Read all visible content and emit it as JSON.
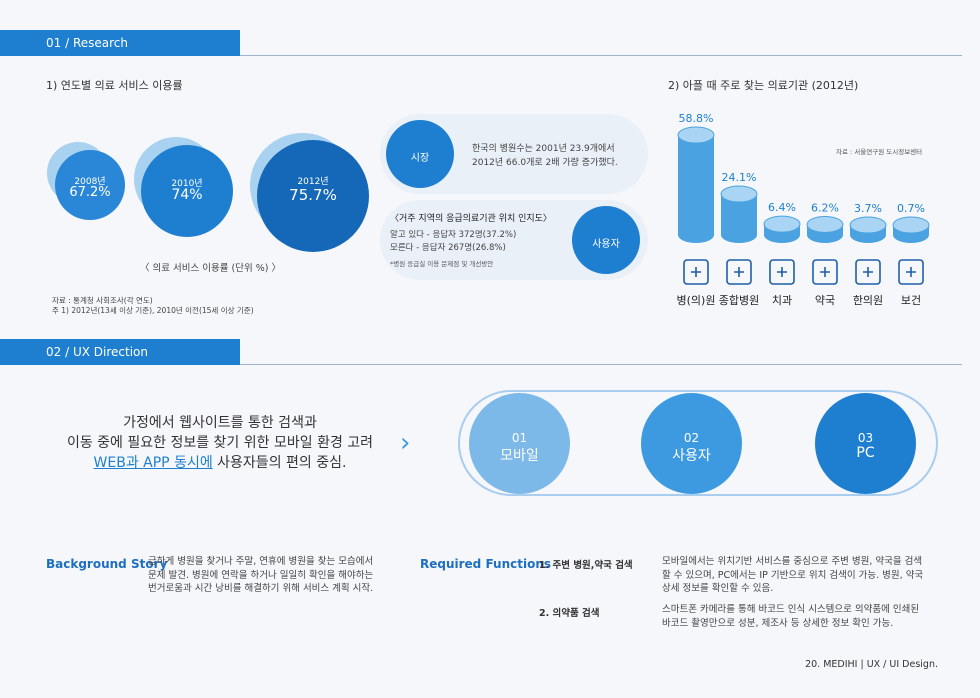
{
  "sections": {
    "research": "01 / Research",
    "ux": "02 / UX Direction"
  },
  "research": {
    "left_title": "1) 연도별 의료 서비스 이용률",
    "right_title": "2) 아플 때 주로 찾는 의료기관 (2012년)",
    "circles": [
      {
        "year": "2008년",
        "value": "67.2%"
      },
      {
        "year": "2010년",
        "value": "74%"
      },
      {
        "year": "2012년",
        "value": "75.7%"
      }
    ],
    "circles_caption": "〈 의료 서비스 이용률 (단위 %) 〉",
    "source_left": "자료 : 통계청 사회조사(각 연도)",
    "note_left": "주 1) 2012년(13세 이상 기준), 2010년 이전(15세 이상 기준)",
    "market": {
      "badge": "시장",
      "text1": "한국의 병원수는 2001년 23.9개에서",
      "text2": "2012년 66.0개로 2배 가량 증가했다."
    },
    "user": {
      "badge": "사용자",
      "title": "〈거주 지역의 응급의료기관 위치 인지도〉",
      "line1": "알고 있다 - 응답자 372명(37.2%)",
      "line2": "모른다 - 응답자 267명(26.8%)",
      "note": "*병원 응급실 이용 문제점 및 개선방안"
    },
    "source_right": "자료 : 서울연구원 도시정보센터"
  },
  "chart_data": {
    "type": "bar",
    "title": "2) 아플 때 주로 찾는 의료기관 (2012년)",
    "categories": [
      "병(의)원",
      "종합병원",
      "치과",
      "약국",
      "한의원",
      "보건"
    ],
    "values": [
      58.8,
      24.1,
      6.4,
      6.2,
      3.7,
      0.7
    ],
    "value_labels": [
      "58.8%",
      "24.1%",
      "6.4%",
      "6.2%",
      "3.7%",
      "0.7%"
    ],
    "icons": [
      "clinic-icon",
      "hospital-icon",
      "tooth-icon",
      "pill-icon",
      "herb-bowl-icon",
      "health-center-icon"
    ],
    "color": "#4aa3e0"
  },
  "ux": {
    "line1": "가정에서 웹사이트를 통한 검색과",
    "line2": "이동 중에 필요한 정보를 찾기 위한 모바일 환경 고려",
    "line3_highlight": "WEB과 APP 동시에",
    "line3_rest": " 사용자들의 편의 중심.",
    "arrow": "›",
    "items": [
      {
        "num": "01",
        "label": "모바일",
        "color": "#7cb8e8"
      },
      {
        "num": "02",
        "label": "사용자",
        "color": "#3d9ae0"
      },
      {
        "num": "03",
        "label": "PC",
        "color": "#1e7fd0"
      }
    ]
  },
  "background": {
    "heading": "Background Story",
    "lines": [
      "급하게 병원을 찾거나 주말, 연휴에 병원을 찾는 모습에서",
      "문제 발견. 병원에 연락을 하거나 일일히 확인을 해야하는",
      "번거로움과 시간 낭비를 해결하기 위해 서비스 계획 시작."
    ]
  },
  "functions": {
    "heading": "Required Functions",
    "items": [
      {
        "title": "1. 주변 병원,약국 검색",
        "lines": [
          "모바일에서는 위치기반 서비스를 중심으로 주변 병원, 약국을 검색",
          "할 수 있으며, PC에서는 IP 기반으로 위치 검색이 가능. 병원, 약국",
          "상세 정보를 확인할 수 있음."
        ]
      },
      {
        "title": "2. 의약품 검색",
        "lines": [
          "스마트폰 카메라를 통해 바코드 인식 시스템으로 의약품에 인쇄된",
          "바코드 촬영만으로 성분, 제조사 등 상세한 정보 확인 가능."
        ]
      }
    ]
  },
  "footer": "20. MEDIHI  |  UX / UI Design."
}
